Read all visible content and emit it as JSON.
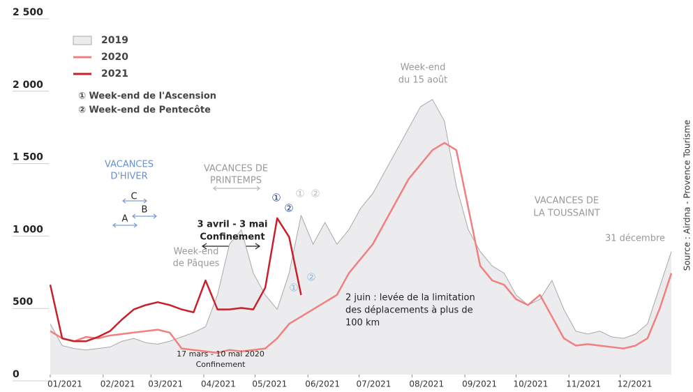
{
  "chart_data": {
    "type": "line",
    "x": [
      1,
      8,
      15,
      22,
      29,
      36,
      43,
      50,
      57,
      64,
      71,
      78,
      85,
      92,
      99,
      106,
      113,
      120,
      127,
      134,
      141,
      148,
      155,
      162,
      169,
      176,
      183,
      190,
      197,
      204,
      211,
      218,
      225,
      232,
      239,
      246,
      253,
      260,
      267,
      274,
      281,
      288,
      295,
      302,
      309,
      316,
      323,
      330,
      337,
      344,
      351,
      358,
      365
    ],
    "xlim": [
      1,
      365
    ],
    "xticks": [
      {
        "value": 1,
        "label": "01/2021"
      },
      {
        "value": 32,
        "label": "02/2021"
      },
      {
        "value": 60,
        "label": "03/2021"
      },
      {
        "value": 91,
        "label": "04/2021"
      },
      {
        "value": 121,
        "label": "05/2021"
      },
      {
        "value": 152,
        "label": "06/2021"
      },
      {
        "value": 182,
        "label": "07/2021"
      },
      {
        "value": 213,
        "label": "08/2021"
      },
      {
        "value": 244,
        "label": "09/2021"
      },
      {
        "value": 274,
        "label": "10/2021"
      },
      {
        "value": 305,
        "label": "11/2021"
      },
      {
        "value": 335,
        "label": "12/2021"
      }
    ],
    "ylim": [
      0,
      2500
    ],
    "yticks": [
      0,
      {
        "value": 500,
        "label": "500"
      },
      {
        "value": 1000,
        "label": "1 000"
      },
      {
        "value": 1500,
        "label": "1 500"
      },
      {
        "value": 2000,
        "label": "2 000"
      },
      {
        "value": 2500,
        "label": "2 500"
      }
    ],
    "series": [
      {
        "name": "2019",
        "color": "#a8a8a8",
        "fill": "#ececee",
        "values": [
          350,
          200,
          180,
          170,
          180,
          190,
          230,
          250,
          220,
          210,
          230,
          260,
          290,
          330,
          550,
          900,
          1000,
          700,
          550,
          450,
          700,
          1100,
          900,
          1050,
          900,
          1000,
          1150,
          1250,
          1400,
          1550,
          1700,
          1850,
          1900,
          1750,
          1300,
          1000,
          850,
          750,
          700,
          550,
          480,
          520,
          650,
          450,
          300,
          280,
          300,
          260,
          250,
          280,
          350,
          600,
          850
        ]
      },
      {
        "name": "2020",
        "color": "#f08080",
        "values": [
          300,
          250,
          230,
          260,
          250,
          270,
          280,
          290,
          300,
          310,
          290,
          180,
          170,
          160,
          150,
          170,
          160,
          170,
          180,
          250,
          350,
          400,
          450,
          500,
          550,
          700,
          800,
          900,
          1050,
          1200,
          1350,
          1450,
          1550,
          1600,
          1550,
          1150,
          750,
          650,
          620,
          520,
          480,
          550,
          400,
          250,
          200,
          210,
          200,
          190,
          180,
          200,
          250,
          450,
          700
        ]
      },
      {
        "name": "2021",
        "color": "#c8202a",
        "values": [
          620,
          250,
          230,
          230,
          260,
          300,
          380,
          450,
          480,
          500,
          480,
          450,
          430,
          650,
          450,
          450,
          460,
          450,
          600,
          1080,
          950,
          550,
          null,
          null,
          null,
          null,
          null,
          null,
          null,
          null,
          null,
          null,
          null,
          null,
          null,
          null,
          null,
          null,
          null,
          null,
          null,
          null,
          null,
          null,
          null,
          null,
          null,
          null,
          null,
          null,
          null,
          null,
          null
        ]
      }
    ],
    "notes": [
      "① Week-end de l'Ascension",
      "② Week-end de Pentecôte"
    ],
    "annotations": [
      "Week-end",
      "du 15 août",
      "VACANCES",
      "D'HIVER",
      "VACANCES DE",
      "PRINTEMPS",
      "VACANCES DE",
      "LA TOUSSAINT",
      "31 décembre",
      "Week-end",
      "de Pâques",
      "3 avril - 3 mai",
      "Confinement",
      "17 mars - 10 mai 2020",
      "Confinement",
      "2 juin : levée de la limitation",
      "des déplacements à plus de",
      "100 km",
      "A",
      "B",
      "C",
      "①",
      "②",
      "①",
      "②",
      "①",
      "②"
    ],
    "source": "Source : Airdna - Provence Tourisme"
  }
}
